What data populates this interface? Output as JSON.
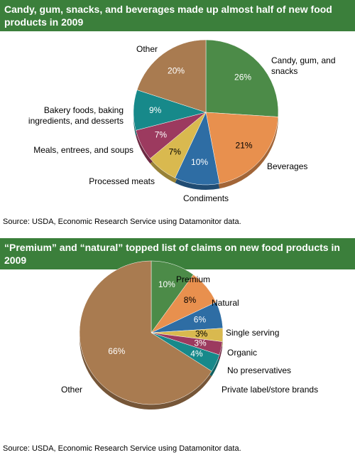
{
  "chart_data": [
    {
      "type": "pie",
      "title": "Candy, gum, snacks, and beverages made up almost half of new food products in 2009",
      "categories": [
        "Candy, gum, and snacks",
        "Beverages",
        "Condiments",
        "Processed meats",
        "Meals, entrees, and soups",
        "Bakery foods, baking ingredients, and desserts",
        "Other"
      ],
      "values": [
        26,
        21,
        10,
        7,
        7,
        9,
        20
      ],
      "value_labels": [
        "26%",
        "21%",
        "10%",
        "7%",
        "7%",
        "9%",
        "20%"
      ],
      "colors": [
        "#4c8b48",
        "#e8904e",
        "#2e6da4",
        "#d9b94f",
        "#9c3a5f",
        "#17898a",
        "#a97b50"
      ],
      "source": "Source: USDA, Economic Research Service using Datamonitor data."
    },
    {
      "type": "pie",
      "title": "“Premium” and “natural” topped list of claims on new food products in 2009",
      "categories": [
        "Premium",
        "Natural",
        "Single serving",
        "Organic",
        "No preservatives",
        "Private label/store brands",
        "Other"
      ],
      "values": [
        10,
        8,
        6,
        3,
        3,
        4,
        66
      ],
      "value_labels": [
        "10%",
        "8%",
        "6%",
        "3%",
        "3%",
        "4%",
        "66%"
      ],
      "colors": [
        "#4c8b48",
        "#e8904e",
        "#2e6da4",
        "#d9b94f",
        "#9c3a5f",
        "#17898a",
        "#a97b50"
      ],
      "source": "Source: USDA, Economic Research Service using Datamonitor data."
    }
  ]
}
